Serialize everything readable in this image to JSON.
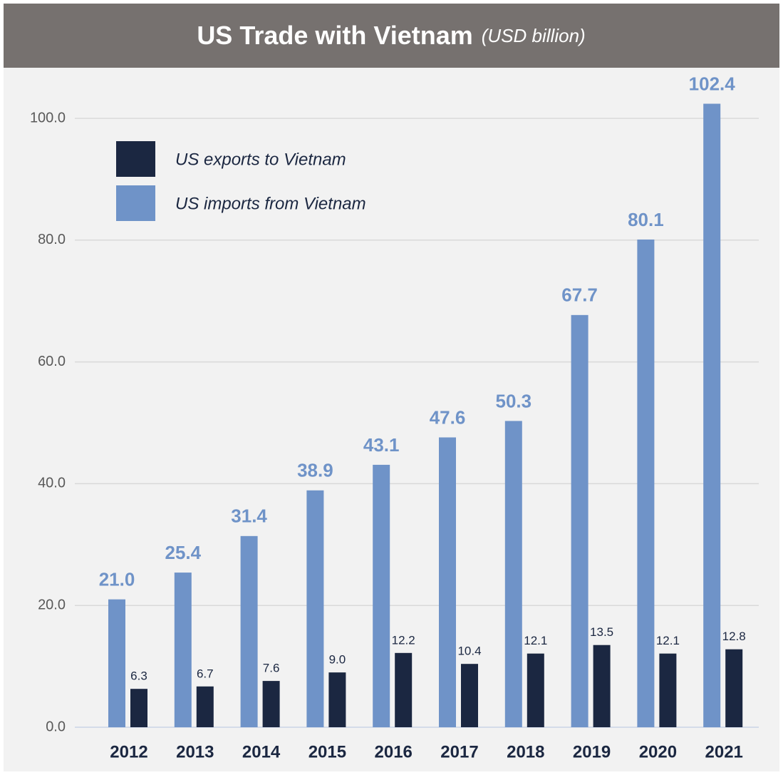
{
  "chart_data": {
    "type": "bar",
    "title": "US Trade with Vietnam",
    "subtitle": "(USD billion)",
    "categories": [
      "2012",
      "2013",
      "2014",
      "2015",
      "2016",
      "2017",
      "2018",
      "2019",
      "2020",
      "2021"
    ],
    "series": [
      {
        "name": "US exports to Vietnam",
        "color": "#1b2741",
        "values": [
          6.3,
          6.7,
          7.6,
          9.0,
          12.2,
          10.4,
          12.1,
          13.5,
          12.1,
          12.8
        ],
        "value_labels": [
          "6.3",
          "6.7",
          "7.6",
          "9.0",
          "12.2",
          "10.4",
          "12.1",
          "13.5",
          "12.1",
          "12.8"
        ]
      },
      {
        "name": "US imports from Vietnam",
        "color": "#6f93c8",
        "values": [
          21.0,
          25.4,
          31.4,
          38.9,
          43.1,
          47.6,
          50.3,
          67.7,
          80.1,
          102.4
        ],
        "value_labels": [
          "21.0",
          "25.4",
          "31.4",
          "38.9",
          "43.1",
          "47.6",
          "50.3",
          "67.7",
          "80.1",
          "102.4"
        ]
      }
    ],
    "ylim": [
      0,
      105
    ],
    "yticks": [
      {
        "value": 0,
        "label": "0.0"
      },
      {
        "value": 20,
        "label": "20.0"
      },
      {
        "value": 40,
        "label": "40.0"
      },
      {
        "value": 60,
        "label": "60.0"
      },
      {
        "value": 80,
        "label": "80.0"
      },
      {
        "value": 100,
        "label": "100.0"
      }
    ],
    "grid": true,
    "legend": "upper left"
  }
}
